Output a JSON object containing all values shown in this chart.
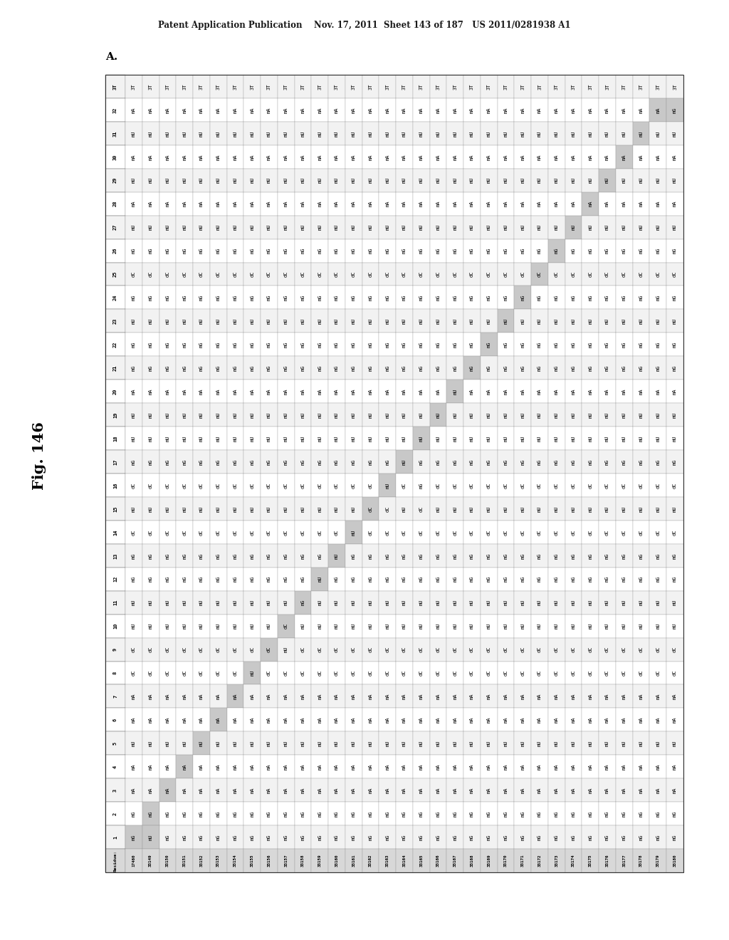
{
  "header_text": "Patent Application Publication    Nov. 17, 2011  Sheet 143 of 187   US 2011/0281938 A1",
  "fig_label": "Fig. 146",
  "section_label": "A.",
  "arc_ids": [
    "17460",
    "33149",
    "33150",
    "33151",
    "33152",
    "33153",
    "33154",
    "33155",
    "33156",
    "33157",
    "33158",
    "33159",
    "33160",
    "33161",
    "33162",
    "33163",
    "33164",
    "33165",
    "33166",
    "33167",
    "33168",
    "33169",
    "33170",
    "33171",
    "33172",
    "33173",
    "33174",
    "33175",
    "33176",
    "33177",
    "33178",
    "33179",
    "33180"
  ],
  "residue_labels": [
    "3T",
    "32",
    "31",
    "30",
    "29",
    "28",
    "27",
    "26",
    "25",
    "24",
    "23",
    "22",
    "21",
    "20",
    "19",
    "18",
    "17",
    "16",
    "15",
    "14",
    "13",
    "12",
    "11",
    "10",
    "9",
    "8",
    "7",
    "6",
    "5",
    "4",
    "3",
    "2",
    "1",
    "Residue:"
  ],
  "table_data": {
    "3T": [
      "3T",
      "3T",
      "3T",
      "3T",
      "3T",
      "3T",
      "3T",
      "3T",
      "3T",
      "3T",
      "3T",
      "3T",
      "3T",
      "3T",
      "3T",
      "3T",
      "3T",
      "3T",
      "3T",
      "3T",
      "3T",
      "3T",
      "3T",
      "3T",
      "3T",
      "3T",
      "3T",
      "3T",
      "3T",
      "3T",
      "3T",
      "3T",
      "3T"
    ],
    "32": [
      "mA",
      "mA",
      "mA",
      "mA",
      "mA",
      "mA",
      "mA",
      "mA",
      "mA",
      "mA",
      "mA",
      "mA",
      "mA",
      "mA",
      "mA",
      "mA",
      "mA",
      "mA",
      "mA",
      "mA",
      "mA",
      "mA",
      "mA",
      "mA",
      "mA",
      "mA",
      "mA",
      "mA",
      "mA",
      "mA",
      "mA",
      "mA",
      "mG"
    ],
    "31": [
      "mU",
      "mU",
      "mU",
      "mU",
      "mU",
      "mU",
      "mU",
      "mU",
      "mU",
      "mU",
      "mU",
      "mU",
      "mU",
      "mU",
      "mU",
      "mU",
      "mU",
      "mU",
      "mU",
      "mU",
      "mU",
      "mU",
      "mU",
      "mU",
      "mU",
      "mU",
      "mU",
      "mU",
      "mU",
      "mU",
      "mU",
      "mU",
      "mU"
    ],
    "30": [
      "mA",
      "mA",
      "mA",
      "mA",
      "mA",
      "mA",
      "mA",
      "mA",
      "mA",
      "mA",
      "mA",
      "mA",
      "mA",
      "mA",
      "mA",
      "mA",
      "mA",
      "mA",
      "mA",
      "mA",
      "mA",
      "mA",
      "mA",
      "mA",
      "mA",
      "mA",
      "mA",
      "mA",
      "mA",
      "mA",
      "mA",
      "mA",
      "mA"
    ],
    "29": [
      "mU",
      "mU",
      "mU",
      "mU",
      "mU",
      "mU",
      "mU",
      "mU",
      "mU",
      "mU",
      "mU",
      "mU",
      "mU",
      "mU",
      "mU",
      "mU",
      "mU",
      "mU",
      "mU",
      "mU",
      "mU",
      "mU",
      "mU",
      "mU",
      "mU",
      "mU",
      "mU",
      "mU",
      "mU",
      "mU",
      "mU",
      "mU",
      "mU"
    ],
    "28": [
      "mA",
      "mA",
      "mA",
      "mA",
      "mA",
      "mA",
      "mA",
      "mA",
      "mA",
      "mA",
      "mA",
      "mA",
      "mA",
      "mA",
      "mA",
      "mA",
      "mA",
      "mA",
      "mA",
      "mA",
      "mA",
      "mA",
      "mA",
      "mA",
      "mA",
      "mA",
      "mA",
      "mA",
      "mA",
      "mA",
      "mA",
      "mA",
      "mA"
    ],
    "27": [
      "mU",
      "mU",
      "mU",
      "mU",
      "mU",
      "mU",
      "mU",
      "mU",
      "mU",
      "mU",
      "mU",
      "mU",
      "mU",
      "mU",
      "mU",
      "mU",
      "mU",
      "mU",
      "mU",
      "mU",
      "mU",
      "mU",
      "mU",
      "mU",
      "mU",
      "mU",
      "mU",
      "mU",
      "mU",
      "mU",
      "mU",
      "mU",
      "mU"
    ],
    "26": [
      "mG",
      "mG",
      "mG",
      "mG",
      "mG",
      "mG",
      "mG",
      "mG",
      "mG",
      "mG",
      "mG",
      "mG",
      "mG",
      "mG",
      "mG",
      "mG",
      "mG",
      "mG",
      "mG",
      "mG",
      "mG",
      "mG",
      "mG",
      "mG",
      "mG",
      "mG",
      "mG",
      "mG",
      "mG",
      "mG",
      "mG",
      "mG",
      "mG"
    ],
    "25": [
      "dC",
      "dC",
      "dC",
      "dC",
      "dC",
      "dC",
      "dC",
      "dC",
      "dC",
      "dC",
      "dC",
      "dC",
      "dC",
      "dC",
      "dC",
      "dC",
      "dC",
      "dC",
      "dC",
      "dC",
      "dC",
      "dC",
      "dC",
      "dC",
      "dC",
      "dC",
      "dC",
      "dC",
      "dC",
      "dC",
      "dC",
      "dC",
      "dC"
    ],
    "24": [
      "mG",
      "mG",
      "mG",
      "mG",
      "mG",
      "mG",
      "mG",
      "mG",
      "mG",
      "mG",
      "mG",
      "mG",
      "mG",
      "mG",
      "mG",
      "mG",
      "mG",
      "mG",
      "mG",
      "mG",
      "mG",
      "mG",
      "mG",
      "mG",
      "mG",
      "mG",
      "mG",
      "mG",
      "mG",
      "mG",
      "mG",
      "mG",
      "mG"
    ],
    "23": [
      "mU",
      "mU",
      "mU",
      "mU",
      "mU",
      "mU",
      "mU",
      "mU",
      "mU",
      "mU",
      "mU",
      "mU",
      "mU",
      "mU",
      "mU",
      "mU",
      "mU",
      "mU",
      "mU",
      "mU",
      "mU",
      "mU",
      "mU",
      "mU",
      "mU",
      "mU",
      "mU",
      "mU",
      "mU",
      "mU",
      "mU",
      "mU",
      "mU"
    ],
    "22": [
      "mG",
      "mG",
      "mG",
      "mG",
      "mG",
      "mG",
      "mG",
      "mG",
      "mG",
      "mG",
      "mG",
      "mG",
      "mG",
      "mG",
      "mG",
      "mG",
      "mG",
      "mG",
      "mG",
      "mG",
      "mG",
      "mG",
      "mG",
      "mG",
      "mG",
      "mG",
      "mG",
      "mG",
      "mG",
      "mG",
      "mG",
      "mG",
      "mG"
    ],
    "21": [
      "mG",
      "mG",
      "mG",
      "mG",
      "mG",
      "mG",
      "mG",
      "mG",
      "mG",
      "mG",
      "mG",
      "mG",
      "mG",
      "mG",
      "mG",
      "mG",
      "mG",
      "mG",
      "mG",
      "mG",
      "mG",
      "mG",
      "mG",
      "mG",
      "mG",
      "mG",
      "mG",
      "mG",
      "mG",
      "mG",
      "mG",
      "mG",
      "mG"
    ],
    "20": [
      "mA",
      "mA",
      "mA",
      "mA",
      "mA",
      "mA",
      "mA",
      "mA",
      "mA",
      "mA",
      "mA",
      "mA",
      "mA",
      "mA",
      "mA",
      "mA",
      "mA",
      "mA",
      "mA",
      "mU",
      "mA",
      "mA",
      "mA",
      "mA",
      "mA",
      "mA",
      "mA",
      "mA",
      "mA",
      "mA",
      "mA",
      "mA",
      "mA"
    ],
    "19": [
      "mU",
      "mU",
      "mU",
      "mU",
      "mU",
      "mU",
      "mU",
      "mU",
      "mU",
      "mU",
      "mU",
      "mU",
      "mU",
      "mU",
      "mU",
      "mU",
      "mU",
      "mU",
      "mU",
      "mU",
      "mU",
      "mU",
      "mU",
      "mU",
      "mU",
      "mU",
      "mU",
      "mU",
      "mU",
      "mU",
      "mU",
      "mU",
      "mU"
    ],
    "18": [
      "mU",
      "mU",
      "mU",
      "mU",
      "mU",
      "mU",
      "mU",
      "mU",
      "mU",
      "mU",
      "mU",
      "mU",
      "mU",
      "mU",
      "mU",
      "mU",
      "mU",
      "mU",
      "mU",
      "mU",
      "mU",
      "mU",
      "mU",
      "mU",
      "mU",
      "mU",
      "mU",
      "mU",
      "mU",
      "mU",
      "mU",
      "mU",
      "mU"
    ],
    "17": [
      "mG",
      "mG",
      "mG",
      "mG",
      "mG",
      "mG",
      "mG",
      "mG",
      "mG",
      "mG",
      "mG",
      "mG",
      "mG",
      "mG",
      "mG",
      "mG",
      "mU",
      "mG",
      "mG",
      "mG",
      "mG",
      "mG",
      "mG",
      "mG",
      "mG",
      "mG",
      "mG",
      "mG",
      "mG",
      "mG",
      "mG",
      "mG",
      "mG"
    ],
    "16": [
      "dC",
      "dC",
      "dC",
      "dC",
      "dC",
      "dC",
      "dC",
      "dC",
      "dC",
      "dC",
      "dC",
      "dC",
      "dC",
      "dC",
      "dC",
      "mU",
      "dC",
      "mG",
      "dC",
      "dC",
      "dC",
      "dC",
      "dC",
      "dC",
      "dC",
      "dC",
      "dC",
      "dC",
      "dC",
      "dC",
      "dC",
      "dC",
      "dC"
    ],
    "15": [
      "mU",
      "mU",
      "mU",
      "mU",
      "mU",
      "mU",
      "mU",
      "mU",
      "mU",
      "mU",
      "mU",
      "mU",
      "mU",
      "mU",
      "dC",
      "dC",
      "mU",
      "dC",
      "mU",
      "mU",
      "mU",
      "mU",
      "mU",
      "mU",
      "mU",
      "mU",
      "mU",
      "mU",
      "mU",
      "mU",
      "mU",
      "mU",
      "mU"
    ],
    "14": [
      "dC",
      "dC",
      "dC",
      "dC",
      "dC",
      "dC",
      "dC",
      "dC",
      "dC",
      "dC",
      "dC",
      "dC",
      "dC",
      "mU",
      "dC",
      "dC",
      "dC",
      "dC",
      "dC",
      "dC",
      "dC",
      "dC",
      "dC",
      "dC",
      "dC",
      "dC",
      "dC",
      "dC",
      "dC",
      "dC",
      "dC",
      "dC",
      "dC"
    ],
    "13": [
      "mG",
      "mG",
      "mG",
      "mG",
      "mG",
      "mG",
      "mG",
      "mG",
      "mG",
      "mG",
      "mG",
      "mG",
      "mU",
      "mG",
      "mG",
      "mG",
      "mG",
      "mG",
      "mG",
      "mG",
      "mG",
      "mG",
      "mG",
      "mG",
      "mG",
      "mG",
      "mG",
      "mG",
      "mG",
      "mG",
      "mG",
      "mG",
      "mG"
    ],
    "12": [
      "mG",
      "mG",
      "mG",
      "mG",
      "mG",
      "mG",
      "mG",
      "mG",
      "mG",
      "mG",
      "mG",
      "mU",
      "mG",
      "mG",
      "mG",
      "mG",
      "mG",
      "mG",
      "mG",
      "mG",
      "mG",
      "mG",
      "mG",
      "mG",
      "mG",
      "mG",
      "mG",
      "mG",
      "mG",
      "mG",
      "mG",
      "mG",
      "mG"
    ],
    "11": [
      "mU",
      "mU",
      "mU",
      "mU",
      "mU",
      "mU",
      "mU",
      "mU",
      "mU",
      "mU",
      "mG",
      "mU",
      "mU",
      "mU",
      "mU",
      "mU",
      "mU",
      "mU",
      "mU",
      "mU",
      "mU",
      "mU",
      "mU",
      "mU",
      "mU",
      "mU",
      "mU",
      "mU",
      "mU",
      "mU",
      "mU",
      "mU",
      "mU"
    ],
    "10": [
      "mU",
      "mU",
      "mU",
      "mU",
      "mU",
      "mU",
      "mU",
      "mU",
      "mU",
      "dC",
      "mU",
      "mU",
      "mU",
      "mU",
      "mU",
      "mU",
      "mU",
      "mU",
      "mU",
      "mU",
      "mU",
      "mU",
      "mU",
      "mU",
      "mU",
      "mU",
      "mU",
      "mU",
      "mU",
      "mU",
      "mU",
      "mU",
      "mU"
    ],
    "9": [
      "dC",
      "dC",
      "dC",
      "dC",
      "dC",
      "dC",
      "dC",
      "dC",
      "dC",
      "mU",
      "dC",
      "dC",
      "dC",
      "dC",
      "dC",
      "dC",
      "dC",
      "dC",
      "dC",
      "dC",
      "dC",
      "dC",
      "dC",
      "dC",
      "dC",
      "dC",
      "dC",
      "dC",
      "dC",
      "dC",
      "dC",
      "dC",
      "dC"
    ],
    "8": [
      "dC",
      "dC",
      "dC",
      "dC",
      "dC",
      "dC",
      "dC",
      "mU",
      "dC",
      "dC",
      "dC",
      "dC",
      "dC",
      "dC",
      "dC",
      "dC",
      "dC",
      "dC",
      "dC",
      "dC",
      "dC",
      "dC",
      "dC",
      "dC",
      "dC",
      "dC",
      "dC",
      "dC",
      "dC",
      "dC",
      "dC",
      "dC",
      "dC"
    ],
    "7": [
      "mA",
      "mA",
      "mA",
      "mA",
      "mA",
      "mA",
      "mA",
      "mA",
      "mA",
      "mA",
      "mA",
      "mA",
      "mA",
      "mA",
      "mA",
      "mA",
      "mA",
      "mA",
      "mA",
      "mA",
      "mA",
      "mA",
      "mA",
      "mA",
      "mA",
      "mA",
      "mA",
      "mA",
      "mA",
      "mA",
      "mA",
      "mA",
      "mA"
    ],
    "6": [
      "mA",
      "mA",
      "mA",
      "mA",
      "mA",
      "mA",
      "mA",
      "mA",
      "mA",
      "mA",
      "mA",
      "mA",
      "mA",
      "mA",
      "mA",
      "mA",
      "mA",
      "mA",
      "mA",
      "mA",
      "mA",
      "mA",
      "mA",
      "mA",
      "mA",
      "mA",
      "mA",
      "mA",
      "mA",
      "mA",
      "mA",
      "mA",
      "mA"
    ],
    "5": [
      "mU",
      "mU",
      "mU",
      "mU",
      "mU",
      "mU",
      "mU",
      "mU",
      "mU",
      "mU",
      "mU",
      "mU",
      "mU",
      "mU",
      "mU",
      "mU",
      "mU",
      "mU",
      "mU",
      "mU",
      "mU",
      "mU",
      "mU",
      "mU",
      "mU",
      "mU",
      "mU",
      "mU",
      "mU",
      "mU",
      "mU",
      "mU",
      "mU"
    ],
    "4": [
      "mA",
      "mA",
      "mA",
      "mA",
      "mA",
      "mA",
      "mA",
      "mA",
      "mA",
      "mA",
      "mA",
      "mA",
      "mA",
      "mA",
      "mA",
      "mA",
      "mA",
      "mA",
      "mA",
      "mA",
      "mA",
      "mA",
      "mA",
      "mA",
      "mA",
      "mA",
      "mA",
      "mA",
      "mA",
      "mA",
      "mA",
      "mA",
      "mA"
    ],
    "3": [
      "mA",
      "mA",
      "mA",
      "mA",
      "mA",
      "mA",
      "mA",
      "mA",
      "mA",
      "mA",
      "mA",
      "mA",
      "mA",
      "mA",
      "mA",
      "mA",
      "mA",
      "mA",
      "mA",
      "mA",
      "mA",
      "mA",
      "mA",
      "mA",
      "mA",
      "mA",
      "mA",
      "mA",
      "mA",
      "mA",
      "mA",
      "mA",
      "mA"
    ],
    "2": [
      "mG",
      "mG",
      "mG",
      "mG",
      "mG",
      "mG",
      "mG",
      "mG",
      "mG",
      "mG",
      "mG",
      "mG",
      "mG",
      "mG",
      "mG",
      "mG",
      "mG",
      "mG",
      "mG",
      "mG",
      "mG",
      "mG",
      "mG",
      "mG",
      "mG",
      "mG",
      "mG",
      "mG",
      "mG",
      "mG",
      "mG",
      "mG",
      "mG"
    ],
    "1": [
      "mG",
      "mU",
      "mG",
      "mG",
      "mG",
      "mG",
      "mG",
      "mG",
      "mG",
      "mG",
      "mG",
      "mG",
      "mG",
      "mG",
      "mG",
      "mG",
      "mG",
      "mG",
      "mG",
      "mG",
      "mG",
      "mG",
      "mG",
      "mG",
      "mG",
      "mG",
      "mG",
      "mG",
      "mG",
      "mG",
      "mG",
      "mG",
      "mG"
    ],
    "Residue:": [
      "ARC",
      "ARC",
      "ARC",
      "ARC",
      "ARC",
      "ARC",
      "ARC",
      "ARC",
      "ARC",
      "ARC",
      "ARC",
      "ARC",
      "ARC",
      "ARC",
      "ARC",
      "ARC",
      "ARC",
      "ARC",
      "ARC",
      "ARC",
      "ARC",
      "ARC",
      "ARC",
      "ARC",
      "ARC",
      "ARC",
      "ARC",
      "ARC",
      "ARC",
      "ARC",
      "ARC",
      "ARC",
      "ARC"
    ]
  },
  "highlighted_cells": {
    "1_0": true,
    "1_1": true,
    "2_1": true,
    "3_2": true,
    "4_3": true,
    "5_4": true,
    "6_5": true,
    "7_6": true,
    "8_7": true,
    "9_8": true,
    "10_9": true,
    "11_10": true,
    "12_11": true,
    "13_12": true,
    "14_13": true,
    "15_14": true,
    "16_15": true,
    "17_16": true,
    "18_17": true,
    "19_18": true,
    "20_19": true,
    "21_20": true,
    "22_21": true,
    "23_22": true,
    "24_23": true,
    "25_24": true,
    "26_25": true,
    "27_26": true,
    "28_27": true,
    "29_28": true,
    "30_29": true,
    "31_30": true,
    "32_31": true,
    "32_32": true
  },
  "bg_color": "#ffffff",
  "font_size": 5.0
}
